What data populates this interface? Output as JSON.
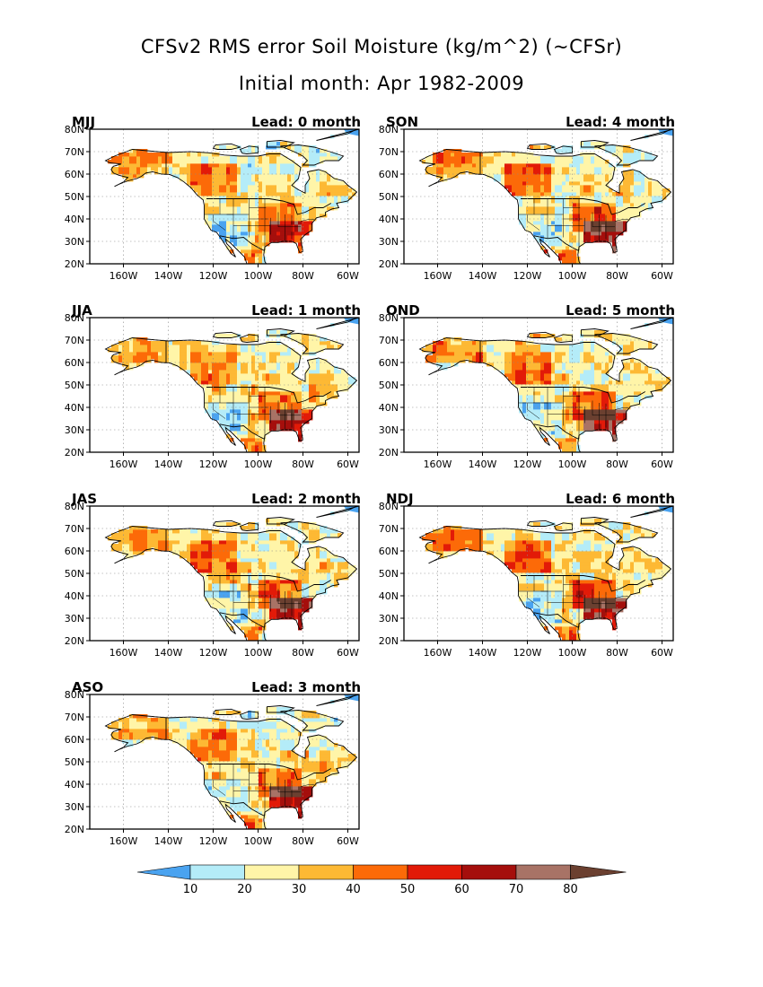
{
  "figure": {
    "title": "CFSv2 RMS error Soil Moisture (kg/m^2) (~CFSr)",
    "subtitle": "Initial month: Apr 1982-2009"
  },
  "axes": {
    "lat_labels": [
      "80N",
      "70N",
      "60N",
      "50N",
      "40N",
      "30N",
      "20N"
    ],
    "lon_labels": [
      "160W",
      "140W",
      "120W",
      "100W",
      "80W",
      "60W"
    ]
  },
  "panels": [
    {
      "season": "MJJ",
      "lead": "Lead: 0 month",
      "intensity": 0.35
    },
    {
      "season": "SON",
      "lead": "Lead: 4 month",
      "intensity": 0.75
    },
    {
      "season": "JJA",
      "lead": "Lead: 1 month",
      "intensity": 0.5
    },
    {
      "season": "OND",
      "lead": "Lead: 5 month",
      "intensity": 0.82
    },
    {
      "season": "JAS",
      "lead": "Lead: 2 month",
      "intensity": 0.62
    },
    {
      "season": "NDJ",
      "lead": "Lead: 6 month",
      "intensity": 0.9
    },
    {
      "season": "ASO",
      "lead": "Lead: 3 month",
      "intensity": 0.55
    }
  ],
  "colorbar": {
    "labels": [
      "10",
      "20",
      "30",
      "40",
      "50",
      "60",
      "70",
      "80"
    ],
    "colors": [
      "#4aa3f0",
      "#b4ecf8",
      "#fff5a8",
      "#fdb934",
      "#fc6a08",
      "#e21a08",
      "#a50f0c",
      "#a87366",
      "#6b4030"
    ]
  },
  "colors": {
    "land_outline": "#000000",
    "ocean": "#ffffff",
    "gridline": "#888888"
  }
}
